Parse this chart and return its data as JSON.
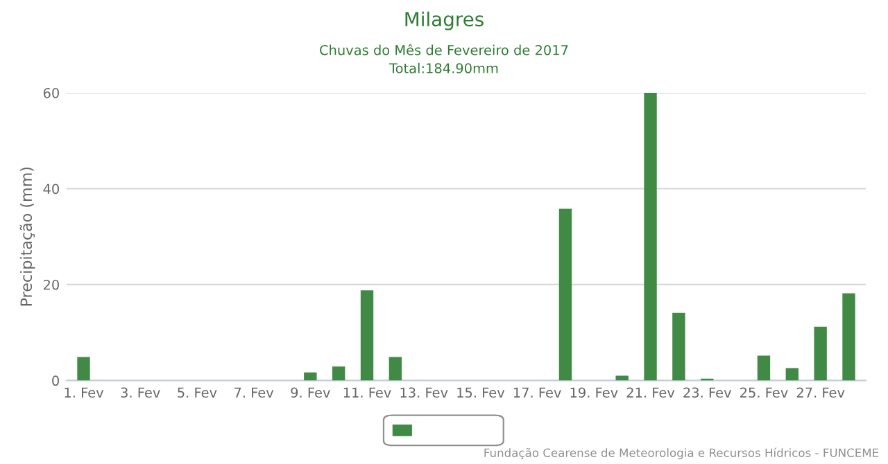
{
  "chart_data": {
    "type": "bar",
    "title": "Milagres",
    "subtitle": "Chuvas do Mês de Fevereiro de 2017\nTotal:184.90mm",
    "ylabel": "Precipitação (mm)",
    "categories": [
      "1. Fev",
      null,
      "3. Fev",
      null,
      "5. Fev",
      null,
      "7. Fev",
      null,
      "9. Fev",
      null,
      "11. Fev",
      null,
      "13. Fev",
      null,
      "15. Fev",
      null,
      "17. Fev",
      null,
      "19. Fev",
      null,
      "21. Fev",
      null,
      "23. Fev",
      null,
      "25. Fev",
      null,
      "27. Fev",
      null
    ],
    "values": [
      4.9,
      0,
      0,
      0,
      0,
      0,
      0,
      0,
      1.7,
      2.9,
      18.8,
      4.9,
      0,
      0,
      0,
      0,
      0,
      35.8,
      0,
      1.0,
      60,
      14.1,
      0.4,
      0,
      5.2,
      2.6,
      11.2,
      18.2
    ],
    "color": "#418a46",
    "ylim": [
      0,
      60
    ],
    "yticks": [
      0,
      20,
      40,
      60
    ],
    "grid": "y",
    "annotations": [
      "Fundação Cearense de Meteorologia e Recursos Hídricos - FUNCEME"
    ]
  }
}
